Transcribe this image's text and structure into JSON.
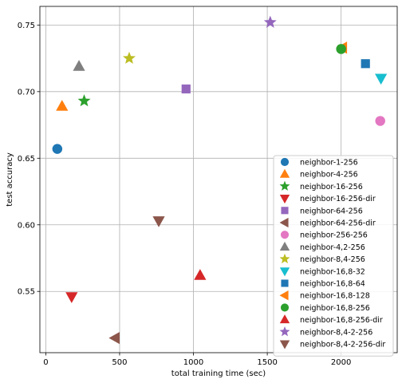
{
  "chart_data": {
    "type": "scatter",
    "xlabel": "total training time (sec)",
    "ylabel": "test accuracy",
    "xlim": [
      -40,
      2380
    ],
    "ylim": [
      0.504,
      0.764
    ],
    "xticks": [
      0,
      500,
      1000,
      1500,
      2000
    ],
    "yticks": [
      0.55,
      0.6,
      0.65,
      0.7,
      0.75
    ],
    "ytick_labels": [
      "0.55",
      "0.60",
      "0.65",
      "0.70",
      "0.75"
    ],
    "grid": true,
    "legend_position": "lower-right",
    "series": [
      {
        "name": "neighbor-1-256",
        "marker": "circle",
        "color": "#1f77b4",
        "x": 78,
        "y": 0.657
      },
      {
        "name": "neighbor-4-256",
        "marker": "triangle-up",
        "color": "#ff7f0e",
        "x": 110,
        "y": 0.689
      },
      {
        "name": "neighbor-16-256",
        "marker": "star",
        "color": "#2ca02c",
        "x": 260,
        "y": 0.693
      },
      {
        "name": "neighbor-16-256-dir",
        "marker": "triangle-down",
        "color": "#d62728",
        "x": 175,
        "y": 0.546
      },
      {
        "name": "neighbor-64-256",
        "marker": "square",
        "color": "#9467bd",
        "x": 950,
        "y": 0.702
      },
      {
        "name": "neighbor-64-256-dir",
        "marker": "triangle-left",
        "color": "#8c564b",
        "x": 470,
        "y": 0.515
      },
      {
        "name": "neighbor-256-256",
        "marker": "circle",
        "color": "#e377c2",
        "x": 2265,
        "y": 0.678
      },
      {
        "name": "neighbor-4,2-256",
        "marker": "triangle-up",
        "color": "#7f7f7f",
        "x": 225,
        "y": 0.719
      },
      {
        "name": "neighbor-8,4-256",
        "marker": "star",
        "color": "#bcbd22",
        "x": 565,
        "y": 0.725
      },
      {
        "name": "neighbor-16,8-32",
        "marker": "triangle-down",
        "color": "#17becf",
        "x": 2270,
        "y": 0.71
      },
      {
        "name": "neighbor-16,8-64",
        "marker": "square",
        "color": "#1f77b4",
        "x": 2165,
        "y": 0.721
      },
      {
        "name": "neighbor-16,8-128",
        "marker": "triangle-left",
        "color": "#ff7f0e",
        "x": 2010,
        "y": 0.733
      },
      {
        "name": "neighbor-16,8-256",
        "marker": "circle",
        "color": "#2ca02c",
        "x": 2000,
        "y": 0.732
      },
      {
        "name": "neighbor-16,8-256-dir",
        "marker": "triangle-up",
        "color": "#d62728",
        "x": 1045,
        "y": 0.562
      },
      {
        "name": "neighbor-8,4-2-256",
        "marker": "star",
        "color": "#9467bd",
        "x": 1520,
        "y": 0.752
      },
      {
        "name": "neighbor-8,4-2-256-dir",
        "marker": "triangle-down",
        "color": "#8c564b",
        "x": 765,
        "y": 0.603
      }
    ]
  }
}
